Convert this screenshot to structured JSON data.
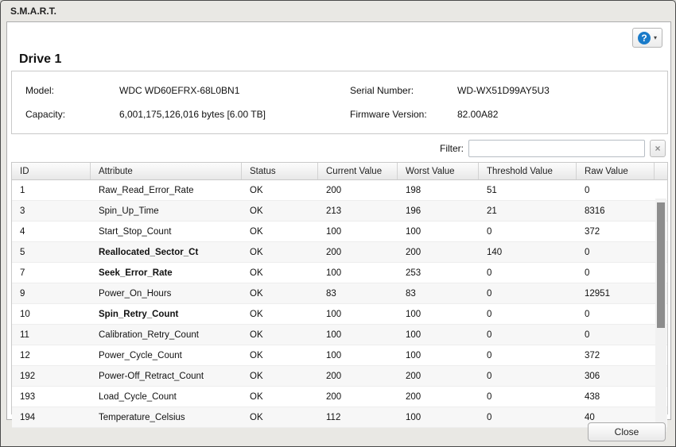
{
  "window": {
    "title": "S.M.A.R.T."
  },
  "toolbar": {
    "help_icon": "?",
    "help_caret": "▾"
  },
  "drive": {
    "title": "Drive 1",
    "info": {
      "model_label": "Model:",
      "model_value": "WDC WD60EFRX-68L0BN1",
      "serial_label": "Serial Number:",
      "serial_value": "WD-WX51D99AY5U3",
      "capacity_label": "Capacity:",
      "capacity_value": "6,001,175,126,016 bytes [6.00 TB]",
      "firmware_label": "Firmware Version:",
      "firmware_value": "82.00A82"
    }
  },
  "filter": {
    "label": "Filter:",
    "value": "",
    "placeholder": "",
    "clear_icon": "×"
  },
  "table": {
    "columns": [
      "ID",
      "Attribute",
      "Status",
      "Current Value",
      "Worst Value",
      "Threshold Value",
      "Raw Value"
    ],
    "rows": [
      {
        "id": "1",
        "attribute": "Raw_Read_Error_Rate",
        "critical": false,
        "status": "OK",
        "current": "200",
        "worst": "198",
        "threshold": "51",
        "raw": "0"
      },
      {
        "id": "3",
        "attribute": "Spin_Up_Time",
        "critical": false,
        "status": "OK",
        "current": "213",
        "worst": "196",
        "threshold": "21",
        "raw": "8316"
      },
      {
        "id": "4",
        "attribute": "Start_Stop_Count",
        "critical": false,
        "status": "OK",
        "current": "100",
        "worst": "100",
        "threshold": "0",
        "raw": "372"
      },
      {
        "id": "5",
        "attribute": "Reallocated_Sector_Ct",
        "critical": true,
        "status": "OK",
        "current": "200",
        "worst": "200",
        "threshold": "140",
        "raw": "0"
      },
      {
        "id": "7",
        "attribute": "Seek_Error_Rate",
        "critical": true,
        "status": "OK",
        "current": "100",
        "worst": "253",
        "threshold": "0",
        "raw": "0"
      },
      {
        "id": "9",
        "attribute": "Power_On_Hours",
        "critical": false,
        "status": "OK",
        "current": "83",
        "worst": "83",
        "threshold": "0",
        "raw": "12951"
      },
      {
        "id": "10",
        "attribute": "Spin_Retry_Count",
        "critical": true,
        "status": "OK",
        "current": "100",
        "worst": "100",
        "threshold": "0",
        "raw": "0"
      },
      {
        "id": "11",
        "attribute": "Calibration_Retry_Count",
        "critical": false,
        "status": "OK",
        "current": "100",
        "worst": "100",
        "threshold": "0",
        "raw": "0"
      },
      {
        "id": "12",
        "attribute": "Power_Cycle_Count",
        "critical": false,
        "status": "OK",
        "current": "100",
        "worst": "100",
        "threshold": "0",
        "raw": "372"
      },
      {
        "id": "192",
        "attribute": "Power-Off_Retract_Count",
        "critical": false,
        "status": "OK",
        "current": "200",
        "worst": "200",
        "threshold": "0",
        "raw": "306"
      },
      {
        "id": "193",
        "attribute": "Load_Cycle_Count",
        "critical": false,
        "status": "OK",
        "current": "200",
        "worst": "200",
        "threshold": "0",
        "raw": "438"
      },
      {
        "id": "194",
        "attribute": "Temperature_Celsius",
        "critical": false,
        "status": "OK",
        "current": "112",
        "worst": "100",
        "threshold": "0",
        "raw": "40"
      }
    ]
  },
  "footer": {
    "close_label": "Close"
  }
}
